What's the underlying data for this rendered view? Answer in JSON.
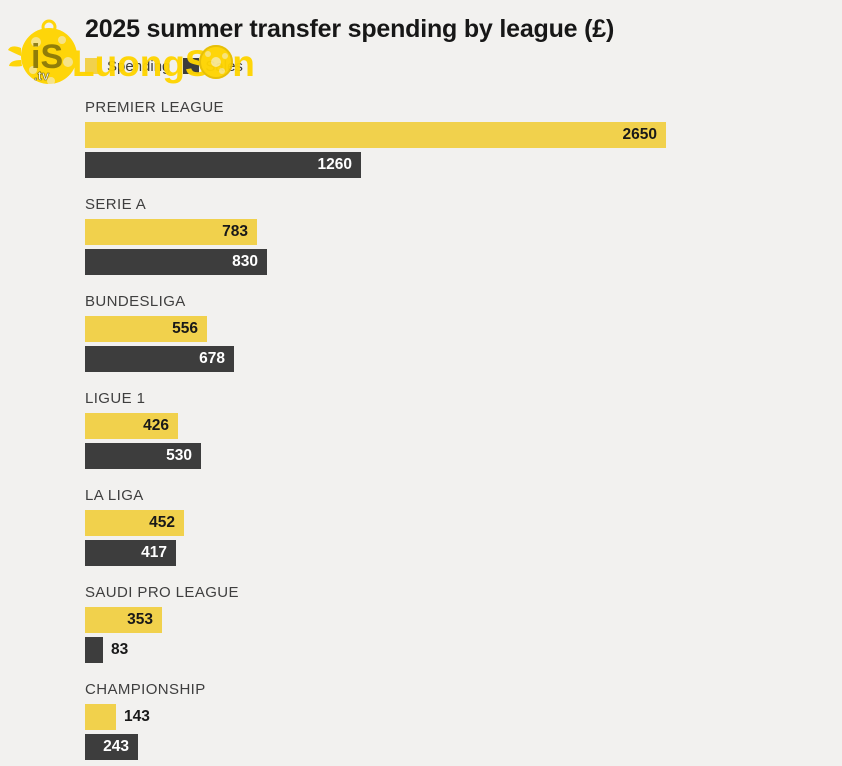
{
  "title": "2025 summer transfer spending by league (£)",
  "watermark": {
    "text": "LuongSon",
    "monogram": "iS",
    "tld": ".tv"
  },
  "legend": [
    {
      "label": "Spending",
      "color": "#F1D14C"
    },
    {
      "label": "Sales",
      "color": "#3D3D3D"
    }
  ],
  "colors": {
    "background": "#F2F1EF",
    "spending": "#F1D14C",
    "sales": "#3D3D3D",
    "title": "#171717",
    "league_label": "#3F3F3F",
    "watermark": "#FFD400"
  },
  "chart_data": {
    "type": "bar",
    "orientation": "horizontal",
    "title": "2025 summer transfer spending by league (£)",
    "categories": [
      "PREMIER LEAGUE",
      "SERIE A",
      "BUNDESLIGA",
      "LIGUE 1",
      "LA LIGA",
      "SAUDI PRO LEAGUE",
      "CHAMPIONSHIP"
    ],
    "series": [
      {
        "name": "Spending",
        "values": [
          2650,
          783,
          556,
          426,
          452,
          353,
          143
        ]
      },
      {
        "name": "Sales",
        "values": [
          1260,
          830,
          678,
          530,
          417,
          83,
          243
        ]
      }
    ],
    "xlim": [
      0,
      2650
    ],
    "grid": false,
    "legend_position": "top-left",
    "value_labels": true
  }
}
